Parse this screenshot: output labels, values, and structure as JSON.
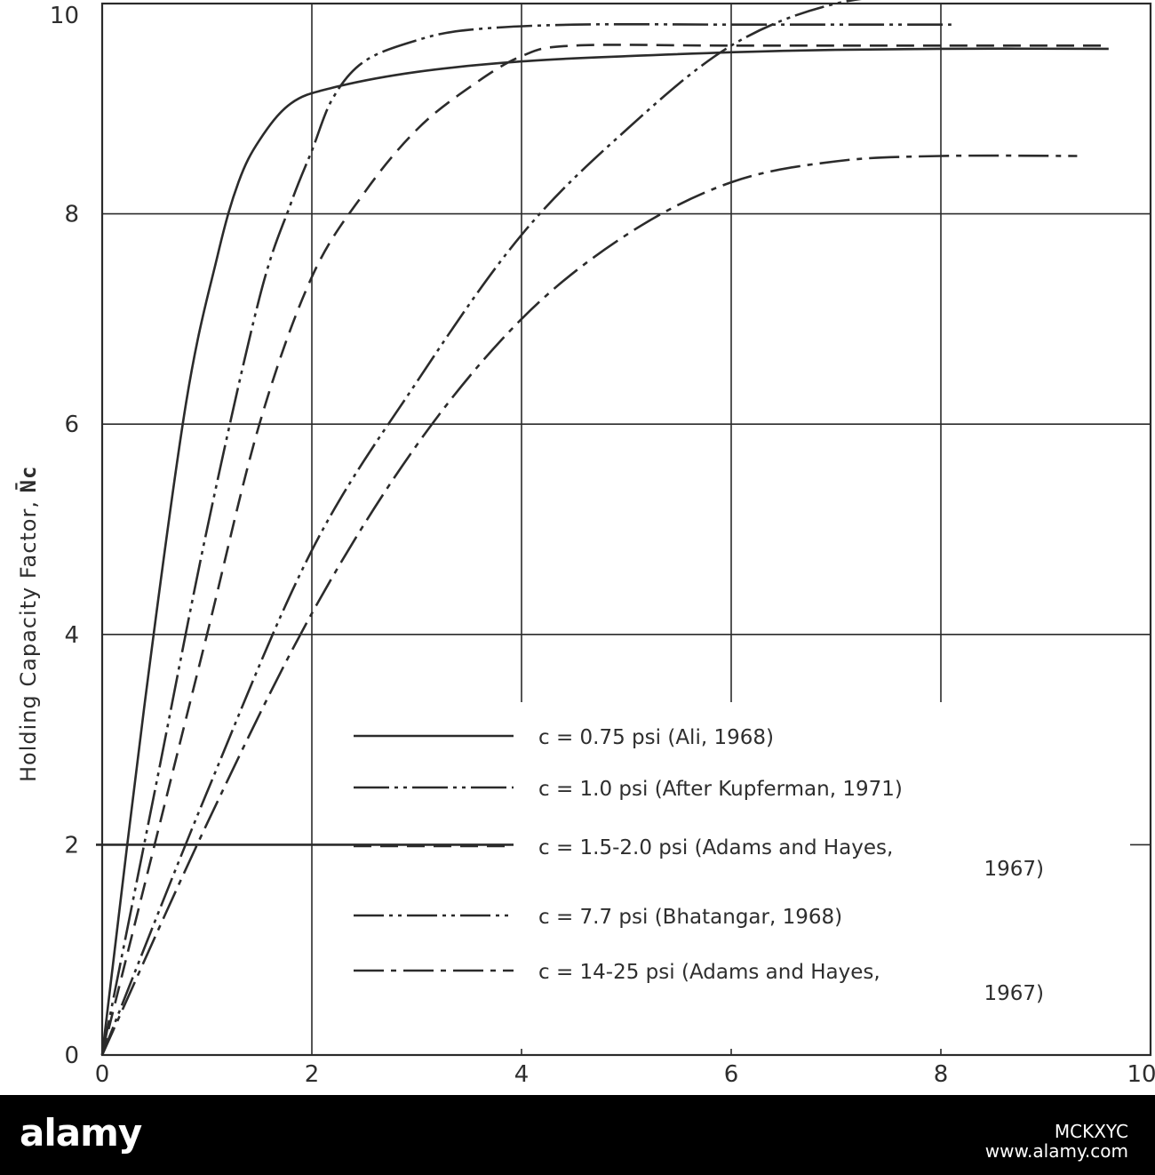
{
  "chart_data": {
    "type": "line",
    "title": "",
    "xlabel": "",
    "ylabel": "Holding Capacity Factor, ",
    "ylabel_symbol": "N̄c",
    "xlim": [
      0,
      10
    ],
    "ylim": [
      0,
      10
    ],
    "xticks": [
      "0",
      "2",
      "4",
      "6",
      "8",
      "10"
    ],
    "yticks": [
      "0",
      "2",
      "4",
      "6",
      "8",
      "10"
    ],
    "grid": true,
    "legend_position": "bottom-right",
    "series": [
      {
        "name": "c = 0.75 psi (Ali, 1968)",
        "legend_lines": [
          "c = 0.75 psi (Ali, 1968)"
        ],
        "style": "solid",
        "dash": "",
        "points": [
          [
            0,
            0
          ],
          [
            0.4,
            3.3
          ],
          [
            0.8,
            6.2
          ],
          [
            1.1,
            7.6
          ],
          [
            1.3,
            8.3
          ],
          [
            1.5,
            8.7
          ],
          [
            1.8,
            9.05
          ],
          [
            2.2,
            9.2
          ],
          [
            3,
            9.35
          ],
          [
            4,
            9.45
          ],
          [
            5,
            9.5
          ],
          [
            6.5,
            9.55
          ],
          [
            8,
            9.57
          ],
          [
            9.6,
            9.57
          ]
        ]
      },
      {
        "name": "c = 1.0 psi (After Kupferman, 1971)",
        "legend_lines": [
          "c = 1.0 psi (After Kupferman, 1971)"
        ],
        "style": "long-dash-dot-dot",
        "dash": "40,6,4,6,4,6",
        "points": [
          [
            0,
            0
          ],
          [
            0.5,
            2.5
          ],
          [
            1,
            5.0
          ],
          [
            1.5,
            7.2
          ],
          [
            1.8,
            8.1
          ],
          [
            2,
            8.6
          ],
          [
            2.2,
            9.1
          ],
          [
            2.5,
            9.45
          ],
          [
            3,
            9.65
          ],
          [
            3.5,
            9.75
          ],
          [
            4.5,
            9.8
          ],
          [
            6,
            9.8
          ],
          [
            7,
            9.8
          ],
          [
            8.1,
            9.8
          ]
        ]
      },
      {
        "name": "c = 1.5-2.0 psi (Adams and Hayes, 1967)",
        "legend_lines": [
          "c = 1.5-2.0 psi (Adams and Hayes,",
          "1967)"
        ],
        "style": "dashed",
        "dash": "20,10",
        "points": [
          [
            0,
            0
          ],
          [
            0.5,
            2.0
          ],
          [
            1,
            4.0
          ],
          [
            1.5,
            6.0
          ],
          [
            2,
            7.4
          ],
          [
            2.5,
            8.2
          ],
          [
            3,
            8.8
          ],
          [
            3.5,
            9.2
          ],
          [
            4,
            9.5
          ],
          [
            4.5,
            9.6
          ],
          [
            6,
            9.6
          ],
          [
            8,
            9.6
          ],
          [
            9.6,
            9.6
          ]
        ]
      },
      {
        "name": "c = 7.7 psi (Bhatangar, 1968)",
        "legend_lines": [
          "c = 7.7 psi (Bhatangar, 1968)"
        ],
        "style": "dash-dot-dot",
        "dash": "34,6,4,6,4,6",
        "points": [
          [
            0,
            0
          ],
          [
            1,
            2.5
          ],
          [
            2,
            4.8
          ],
          [
            3,
            6.4
          ],
          [
            4,
            7.8
          ],
          [
            5,
            8.8
          ],
          [
            6,
            9.6
          ],
          [
            7,
            10.0
          ],
          [
            8,
            10.08
          ],
          [
            9.5,
            10.1
          ]
        ]
      },
      {
        "name": "c = 14-25 psi (Adams and Hayes, 1967)",
        "legend_lines": [
          "c = 14-25 psi (Adams and Hayes,",
          "1967)"
        ],
        "style": "dash-dot",
        "dash": "34,8,6,8",
        "points": [
          [
            0,
            0
          ],
          [
            1,
            2.2
          ],
          [
            2,
            4.2
          ],
          [
            3,
            5.8
          ],
          [
            4,
            7.0
          ],
          [
            5,
            7.8
          ],
          [
            6,
            8.3
          ],
          [
            7,
            8.5
          ],
          [
            8,
            8.55
          ],
          [
            9.3,
            8.55
          ]
        ]
      }
    ]
  },
  "footer": {
    "logo": "alamy",
    "image_id": "MCKXYC",
    "site": "www.alamy.com"
  }
}
